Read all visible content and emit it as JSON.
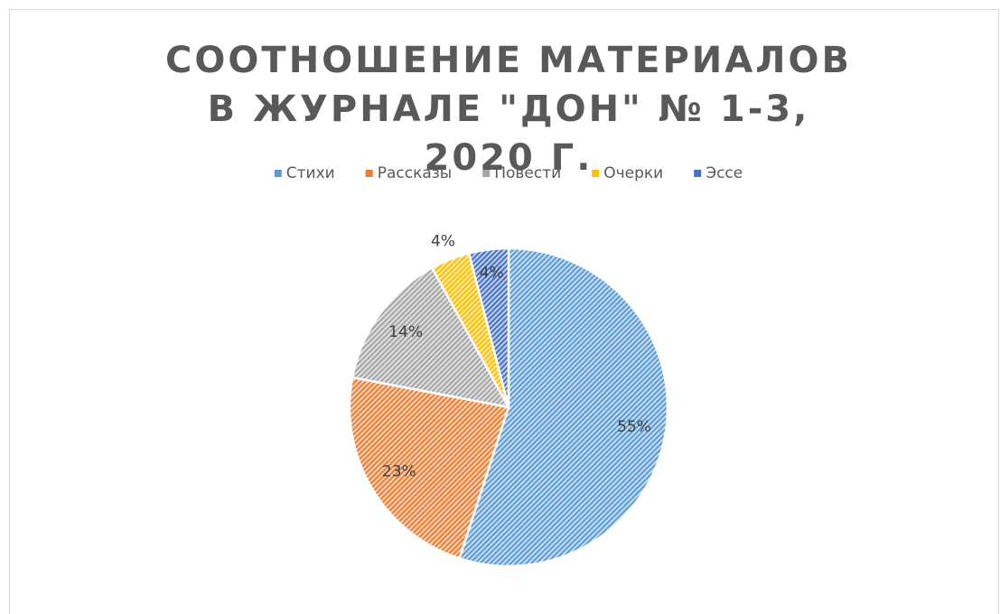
{
  "chart_data": {
    "type": "pie",
    "title": "СООТНОШЕНИЕ МАТЕРИАЛОВ В ЖУРНАЛЕ \"ДОН\" № 1-3, 2020 Г.",
    "categories": [
      "Стихи",
      "Рассказы",
      "Повести",
      "Очерки",
      "Эссе"
    ],
    "values": [
      55,
      23,
      14,
      4,
      4
    ],
    "value_labels": [
      "55%",
      "23%",
      "14%",
      "4%",
      "4%"
    ],
    "colors": [
      "#5b9bd5",
      "#ed7d31",
      "#a5a5a5",
      "#ffc000",
      "#4472c4"
    ],
    "legend": "top"
  }
}
